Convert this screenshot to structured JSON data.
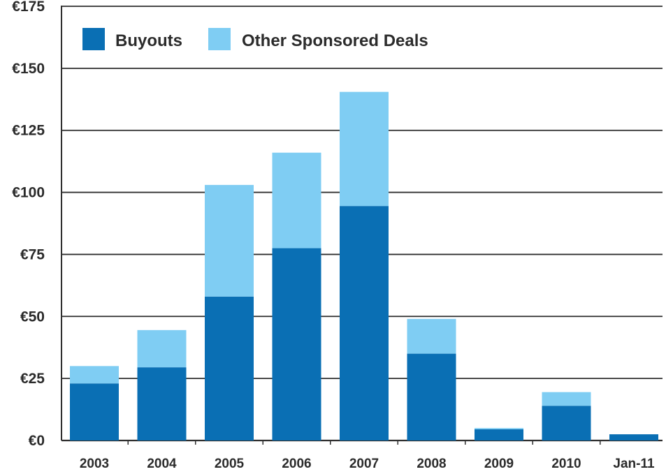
{
  "colors": {
    "buyouts": "#0a6fb4",
    "other_sponsored": "#7fcdf3",
    "gridline": "#2f2f2f",
    "text": "#2b2b2b"
  },
  "legend": {
    "items": [
      {
        "label": "Buyouts",
        "color": "#0a6fb4"
      },
      {
        "label": "Other Sponsored Deals",
        "color": "#7fcdf3"
      }
    ],
    "placement": "top-left"
  },
  "chart_data": {
    "type": "bar",
    "stacked": true,
    "title": "",
    "xlabel": "",
    "ylabel": "",
    "categories": [
      "2003",
      "2004",
      "2005",
      "2006",
      "2007",
      "2008",
      "2009",
      "2010",
      "Jan-11"
    ],
    "series": [
      {
        "name": "Buyouts",
        "values": [
          23,
          29.5,
          58,
          77.5,
          94.5,
          35,
          4.5,
          14,
          2.5
        ]
      },
      {
        "name": "Other Sponsored Deals",
        "values": [
          7,
          15,
          45,
          38.5,
          46,
          14,
          0.5,
          5.5,
          0
        ]
      }
    ],
    "ylim": [
      0,
      175
    ],
    "yticks": [
      0,
      25,
      50,
      75,
      100,
      125,
      150,
      175
    ],
    "ytick_labels": [
      "€0",
      "€25",
      "€50",
      "€75",
      "€100",
      "€125",
      "€150",
      "€175"
    ],
    "grid": true
  }
}
